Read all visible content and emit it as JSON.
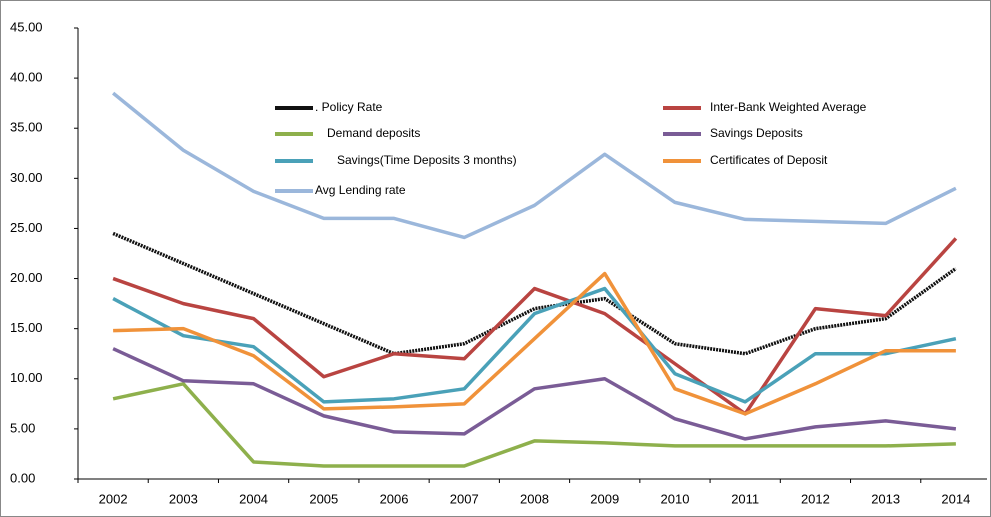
{
  "chart_data": {
    "type": "line",
    "categories": [
      "2002",
      "2003",
      "2004",
      "2005",
      "2006",
      "2007",
      "2008",
      "2009",
      "2010",
      "2011",
      "2012",
      "2013",
      "2014"
    ],
    "series": [
      {
        "name": ". Policy Rate",
        "color": "#111111",
        "values": [
          24.5,
          21.5,
          18.5,
          15.5,
          12.5,
          13.5,
          17,
          18,
          13.5,
          12.5,
          15,
          16,
          21
        ]
      },
      {
        "name": "Inter-Bank Weighted Average",
        "color": "#b94441",
        "values": [
          20,
          17.5,
          16,
          10.2,
          12.5,
          12,
          19,
          16.5,
          11.5,
          6.5,
          17,
          16.3,
          24
        ]
      },
      {
        "name": "Demand deposits",
        "color": "#8eb04c",
        "values": [
          8,
          9.5,
          1.7,
          1.3,
          1.3,
          1.3,
          3.8,
          3.6,
          3.3,
          3.3,
          3.3,
          3.3,
          3.5
        ]
      },
      {
        "name": "Savings Deposits",
        "color": "#7a5c96",
        "values": [
          13,
          9.8,
          9.5,
          6.3,
          4.7,
          4.5,
          9,
          10,
          6,
          4,
          5.2,
          5.8,
          5
        ]
      },
      {
        "name": "Savings(Time Deposits  3 months)",
        "color": "#4aa1b8",
        "values": [
          18,
          14.3,
          13.2,
          7.7,
          8,
          9,
          16.5,
          19,
          10.5,
          7.7,
          12.5,
          12.5,
          14
        ]
      },
      {
        "name": "Certificates of Deposit",
        "color": "#f0923a",
        "values": [
          14.8,
          15,
          12.3,
          7,
          7.2,
          7.5,
          14,
          20.5,
          9,
          6.5,
          9.5,
          12.8,
          12.8
        ]
      },
      {
        "name": "Avg Lending rate",
        "color": "#9bb7db",
        "values": [
          38.5,
          32.8,
          28.7,
          26,
          26,
          24.1,
          27.3,
          32.4,
          27.6,
          25.9,
          25.7,
          25.5,
          29
        ]
      }
    ],
    "ylim": [
      0,
      45
    ],
    "yticks": [
      {
        "value": 0,
        "label": "0.00"
      },
      {
        "value": 5,
        "label": "5.00"
      },
      {
        "value": 10,
        "label": "10.00"
      },
      {
        "value": 15,
        "label": "15.00"
      },
      {
        "value": 20,
        "label": "20.00"
      },
      {
        "value": 25,
        "label": "25.00"
      },
      {
        "value": 30,
        "label": "30.00"
      },
      {
        "value": 35,
        "label": "35.00"
      },
      {
        "value": 40,
        "label": "40.00"
      },
      {
        "value": 45,
        "label": "45.00"
      }
    ],
    "grid": false,
    "legend": "upper center"
  }
}
